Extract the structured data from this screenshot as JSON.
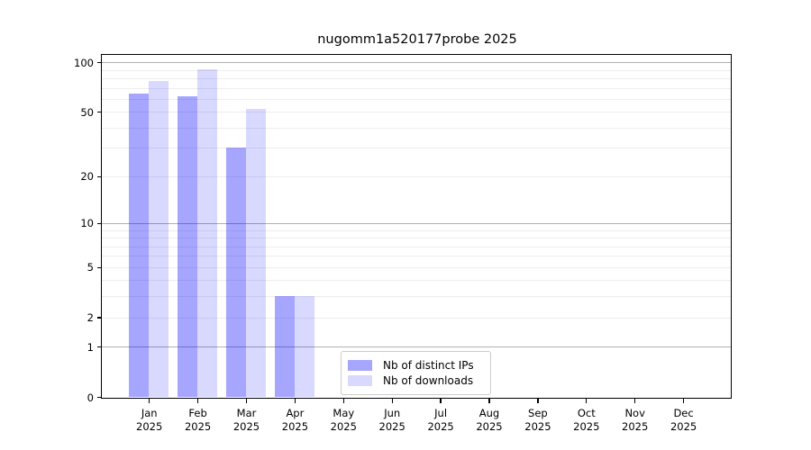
{
  "chart_data": {
    "type": "bar",
    "title": "nugomm1a520177probe 2025",
    "categories": [
      "Jan 2025",
      "Feb 2025",
      "Mar 2025",
      "Apr 2025",
      "May 2025",
      "Jun 2025",
      "Jul 2025",
      "Aug 2025",
      "Sep 2025",
      "Oct 2025",
      "Nov 2025",
      "Dec 2025"
    ],
    "series": [
      {
        "name": "Nb of distinct IPs",
        "color": "rgba(0,0,255,0.35)",
        "values": [
          65,
          62,
          30,
          3,
          0,
          0,
          0,
          0,
          0,
          0,
          0,
          0
        ]
      },
      {
        "name": "Nb of downloads",
        "color": "rgba(0,0,255,0.15)",
        "values": [
          77,
          91,
          52,
          3,
          0,
          0,
          0,
          0,
          0,
          0,
          0,
          0
        ]
      }
    ],
    "yscale": "log1p",
    "ylim": [
      0,
      111
    ],
    "y_tick_values": [
      100,
      50,
      20,
      10,
      5,
      2,
      1,
      0
    ],
    "y_tick_labels": [
      "100",
      "50",
      "20",
      "10",
      "5",
      "2",
      "1",
      "0"
    ],
    "grid_major": [
      100,
      10,
      1
    ],
    "grid_minor": [
      90,
      80,
      70,
      60,
      50,
      40,
      30,
      20,
      9,
      8,
      7,
      6,
      5,
      4,
      3,
      2
    ],
    "grid": "on",
    "legend_position": "lower center",
    "colors": {
      "bar_distinct_ips": "rgba(0,0,255,0.35)",
      "bar_downloads": "rgba(0,0,255,0.15)",
      "grid_major": "#b0b0b0",
      "grid_minor": "#ededed",
      "axis": "#000000"
    }
  }
}
